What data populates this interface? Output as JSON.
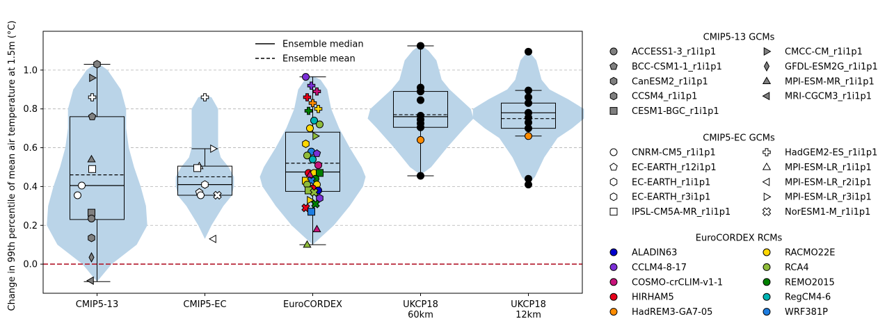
{
  "chart_data": {
    "type": "box-violin",
    "title": "",
    "ylabel": "Change in 99th percentile of mean air temperature at 1.5m (°C)",
    "xlabel": "",
    "ylim": [
      -0.15,
      1.2
    ],
    "yticks": [
      0.0,
      0.2,
      0.4,
      0.6,
      0.8,
      1.0
    ],
    "ytick_labels": [
      "0.0",
      "0.2",
      "0.4",
      "0.6",
      "0.8",
      "1.0"
    ],
    "grid": "horizontal dashed",
    "zero_line_color": "#b2182b",
    "violin_color": "#bad4e8",
    "categories": [
      {
        "label": "CMIP5-13",
        "lines": [
          "CMIP5-13"
        ]
      },
      {
        "label": "CMIP5-EC",
        "lines": [
          "CMIP5-EC"
        ]
      },
      {
        "label": "EuroCORDEX",
        "lines": [
          "EuroCORDEX"
        ]
      },
      {
        "label": "UKCP18 60km",
        "lines": [
          "UKCP18",
          "60km"
        ]
      },
      {
        "label": "UKCP18 12km",
        "lines": [
          "UKCP18",
          "12km"
        ]
      }
    ],
    "groups": [
      {
        "violin": [
          [
            -0.09,
            0.0
          ],
          [
            0.0,
            0.11
          ],
          [
            0.1,
            0.3
          ],
          [
            0.2,
            0.38
          ],
          [
            0.3,
            0.37
          ],
          [
            0.4,
            0.33
          ],
          [
            0.5,
            0.28
          ],
          [
            0.6,
            0.24
          ],
          [
            0.7,
            0.22
          ],
          [
            0.8,
            0.22
          ],
          [
            0.9,
            0.18
          ],
          [
            1.0,
            0.08
          ],
          [
            1.04,
            0.0
          ]
        ],
        "box": {
          "q1": 0.23,
          "median": 0.405,
          "q3": 0.76,
          "mean": 0.46,
          "whisker_low": -0.09,
          "whisker_high": 1.03
        },
        "points": [
          {
            "y": 1.03,
            "marker": "hexagon",
            "color": "#808080"
          },
          {
            "y": 0.96,
            "marker": "tri-right",
            "color": "#808080"
          },
          {
            "y": 0.86,
            "marker": "plus",
            "color": "#ffffff"
          },
          {
            "y": 0.76,
            "marker": "pentagon",
            "color": "#808080"
          },
          {
            "y": 0.54,
            "marker": "tri-up",
            "color": "#808080"
          },
          {
            "y": 0.49,
            "marker": "square",
            "color": "#ffffff"
          },
          {
            "y": 0.405,
            "marker": "circle",
            "color": "#ffffff"
          },
          {
            "y": 0.355,
            "marker": "circle",
            "color": "#ffffff"
          },
          {
            "y": 0.265,
            "marker": "square",
            "color": "#808080"
          },
          {
            "y": 0.235,
            "marker": "circle",
            "color": "#808080"
          },
          {
            "y": 0.135,
            "marker": "hexagon",
            "color": "#808080"
          },
          {
            "y": 0.035,
            "marker": "diamond",
            "color": "#808080"
          },
          {
            "y": -0.085,
            "marker": "tri-left",
            "color": "#808080"
          }
        ]
      },
      {
        "violin": [
          [
            0.13,
            0.0
          ],
          [
            0.2,
            0.05
          ],
          [
            0.3,
            0.14
          ],
          [
            0.35,
            0.2
          ],
          [
            0.4,
            0.22
          ],
          [
            0.45,
            0.22
          ],
          [
            0.5,
            0.18
          ],
          [
            0.55,
            0.12
          ],
          [
            0.6,
            0.1
          ],
          [
            0.7,
            0.1
          ],
          [
            0.8,
            0.1
          ],
          [
            0.86,
            0.05
          ],
          [
            0.87,
            0.0
          ]
        ],
        "box": {
          "q1": 0.355,
          "median": 0.41,
          "q3": 0.505,
          "mean": 0.45,
          "whisker_low": 0.355,
          "whisker_high": 0.595
        },
        "points": [
          {
            "y": 0.86,
            "marker": "plus",
            "color": "#ffffff"
          },
          {
            "y": 0.595,
            "marker": "tri-right",
            "color": "#ffffff"
          },
          {
            "y": 0.505,
            "marker": "tri-up",
            "color": "#ffffff"
          },
          {
            "y": 0.495,
            "marker": "square",
            "color": "#ffffff"
          },
          {
            "y": 0.41,
            "marker": "hexagon",
            "color": "#ffffff"
          },
          {
            "y": 0.37,
            "marker": "pentagon",
            "color": "#ffffff"
          },
          {
            "y": 0.355,
            "marker": "circle",
            "color": "#ffffff"
          },
          {
            "y": 0.355,
            "marker": "cross",
            "color": "#ffffff"
          },
          {
            "y": 0.13,
            "marker": "tri-left",
            "color": "#ffffff"
          }
        ]
      },
      {
        "violin": [
          [
            0.1,
            0.0
          ],
          [
            0.15,
            0.08
          ],
          [
            0.2,
            0.16
          ],
          [
            0.3,
            0.28
          ],
          [
            0.4,
            0.38
          ],
          [
            0.45,
            0.4
          ],
          [
            0.5,
            0.37
          ],
          [
            0.6,
            0.28
          ],
          [
            0.7,
            0.2
          ],
          [
            0.8,
            0.14
          ],
          [
            0.9,
            0.11
          ],
          [
            0.95,
            0.06
          ],
          [
            0.97,
            0.0
          ]
        ],
        "box": {
          "q1": 0.375,
          "median": 0.475,
          "q3": 0.68,
          "mean": 0.52,
          "whisker_low": 0.1,
          "whisker_high": 0.965
        },
        "points": [
          {
            "y": 0.965,
            "marker": "circle",
            "color": "#7b2fd6"
          },
          {
            "y": 0.92,
            "marker": "plus",
            "color": "#7b2fd6"
          },
          {
            "y": 0.89,
            "marker": "plus",
            "color": "#c7137a"
          },
          {
            "y": 0.86,
            "marker": "plus",
            "color": "#e6001a"
          },
          {
            "y": 0.83,
            "marker": "plus",
            "color": "#ff8c00"
          },
          {
            "y": 0.8,
            "marker": "plus",
            "color": "#ffd700"
          },
          {
            "y": 0.79,
            "marker": "plus",
            "color": "#008000"
          },
          {
            "y": 0.74,
            "marker": "circle",
            "color": "#00b3b3"
          },
          {
            "y": 0.72,
            "marker": "circle",
            "color": "#8fbc3a"
          },
          {
            "y": 0.7,
            "marker": "circle",
            "color": "#ffd700"
          },
          {
            "y": 0.66,
            "marker": "tri-right",
            "color": "#8fbc3a"
          },
          {
            "y": 0.62,
            "marker": "hexagon",
            "color": "#ffd700"
          },
          {
            "y": 0.58,
            "marker": "circle",
            "color": "#1e7de0"
          },
          {
            "y": 0.57,
            "marker": "pentagon",
            "color": "#7b2fd6"
          },
          {
            "y": 0.56,
            "marker": "circle",
            "color": "#8fbc3a"
          },
          {
            "y": 0.54,
            "marker": "circle",
            "color": "#00b3b3"
          },
          {
            "y": 0.51,
            "marker": "circle",
            "color": "#c7137a"
          },
          {
            "y": 0.47,
            "marker": "circle",
            "color": "#e6001a"
          },
          {
            "y": 0.47,
            "marker": "circle",
            "color": "#ffd700"
          },
          {
            "y": 0.47,
            "marker": "square",
            "color": "#008000"
          },
          {
            "y": 0.46,
            "marker": "tri-up",
            "color": "#c7137a"
          },
          {
            "y": 0.44,
            "marker": "circle",
            "color": "#008000"
          },
          {
            "y": 0.43,
            "marker": "square",
            "color": "#ffd700"
          },
          {
            "y": 0.43,
            "marker": "cross",
            "color": "#1e7de0"
          },
          {
            "y": 0.41,
            "marker": "circle",
            "color": "#ffd700"
          },
          {
            "y": 0.41,
            "marker": "circle",
            "color": "#8fbc3a"
          },
          {
            "y": 0.39,
            "marker": "circle",
            "color": "#e6001a"
          },
          {
            "y": 0.38,
            "marker": "circle",
            "color": "#0000cd"
          },
          {
            "y": 0.38,
            "marker": "square",
            "color": "#8fbc3a"
          },
          {
            "y": 0.37,
            "marker": "cross",
            "color": "#8fbc3a"
          },
          {
            "y": 0.34,
            "marker": "hexagon",
            "color": "#7b2fd6"
          },
          {
            "y": 0.33,
            "marker": "tri-right",
            "color": "#ffd700"
          },
          {
            "y": 0.31,
            "marker": "cross",
            "color": "#008000"
          },
          {
            "y": 0.29,
            "marker": "cross",
            "color": "#e6001a"
          },
          {
            "y": 0.27,
            "marker": "square",
            "color": "#1e7de0"
          },
          {
            "y": 0.18,
            "marker": "tri-up",
            "color": "#c7137a"
          },
          {
            "y": 0.1,
            "marker": "tri-up",
            "color": "#8fbc3a"
          }
        ]
      },
      {
        "violin": [
          [
            0.46,
            0.0
          ],
          [
            0.5,
            0.08
          ],
          [
            0.6,
            0.2
          ],
          [
            0.7,
            0.33
          ],
          [
            0.75,
            0.4
          ],
          [
            0.8,
            0.38
          ],
          [
            0.85,
            0.3
          ],
          [
            0.9,
            0.22
          ],
          [
            0.95,
            0.16
          ],
          [
            1.0,
            0.14
          ],
          [
            1.05,
            0.12
          ],
          [
            1.1,
            0.06
          ],
          [
            1.13,
            0.0
          ]
        ],
        "box": {
          "q1": 0.705,
          "median": 0.76,
          "q3": 0.89,
          "mean": 0.77,
          "whisker_low": 0.455,
          "whisker_high": 1.125
        },
        "points": [
          {
            "y": 1.125,
            "marker": "circle",
            "color": "#000000"
          },
          {
            "y": 0.91,
            "marker": "circle",
            "color": "#000000"
          },
          {
            "y": 0.89,
            "marker": "circle",
            "color": "#000000"
          },
          {
            "y": 0.845,
            "marker": "circle",
            "color": "#000000"
          },
          {
            "y": 0.765,
            "marker": "circle",
            "color": "#000000"
          },
          {
            "y": 0.745,
            "marker": "circle",
            "color": "#000000"
          },
          {
            "y": 0.725,
            "marker": "circle",
            "color": "#000000"
          },
          {
            "y": 0.705,
            "marker": "circle",
            "color": "#000000"
          },
          {
            "y": 0.64,
            "marker": "circle",
            "color": "#ff8c00"
          },
          {
            "y": 0.455,
            "marker": "circle",
            "color": "#000000"
          }
        ]
      },
      {
        "violin": [
          [
            0.41,
            0.0
          ],
          [
            0.45,
            0.05
          ],
          [
            0.55,
            0.12
          ],
          [
            0.65,
            0.22
          ],
          [
            0.7,
            0.33
          ],
          [
            0.75,
            0.42
          ],
          [
            0.8,
            0.42
          ],
          [
            0.85,
            0.3
          ],
          [
            0.9,
            0.16
          ],
          [
            0.95,
            0.1
          ],
          [
            1.0,
            0.08
          ],
          [
            1.05,
            0.06
          ],
          [
            1.1,
            0.0
          ]
        ],
        "box": {
          "q1": 0.7,
          "median": 0.78,
          "q3": 0.83,
          "mean": 0.75,
          "whisker_low": 0.66,
          "whisker_high": 0.895
        },
        "points": [
          {
            "y": 1.095,
            "marker": "circle",
            "color": "#000000"
          },
          {
            "y": 0.895,
            "marker": "circle",
            "color": "#000000"
          },
          {
            "y": 0.86,
            "marker": "circle",
            "color": "#000000"
          },
          {
            "y": 0.83,
            "marker": "circle",
            "color": "#000000"
          },
          {
            "y": 0.78,
            "marker": "circle",
            "color": "#000000"
          },
          {
            "y": 0.755,
            "marker": "circle",
            "color": "#000000"
          },
          {
            "y": 0.73,
            "marker": "circle",
            "color": "#000000"
          },
          {
            "y": 0.7,
            "marker": "circle",
            "color": "#000000"
          },
          {
            "y": 0.66,
            "marker": "circle",
            "color": "#ff8c00"
          },
          {
            "y": 0.44,
            "marker": "circle",
            "color": "#000000"
          },
          {
            "y": 0.41,
            "marker": "circle",
            "color": "#000000"
          }
        ]
      }
    ],
    "inner_legend": {
      "placement": "top-center",
      "entries": [
        {
          "label": "Ensemble median",
          "style": "solid"
        },
        {
          "label": "Ensemble mean",
          "style": "dashed"
        }
      ]
    },
    "legends": [
      {
        "title": "CMIP5-13 GCMs",
        "entries": [
          {
            "label": "ACCESS1-3_r1i1p1",
            "marker": "circle",
            "color": "#808080"
          },
          {
            "label": "BCC-CSM1-1_r1i1p1",
            "marker": "pentagon",
            "color": "#808080"
          },
          {
            "label": "CanESM2_r1i1p1",
            "marker": "hexagon",
            "color": "#808080"
          },
          {
            "label": "CCSM4_r1i1p1",
            "marker": "hexagon",
            "color": "#808080"
          },
          {
            "label": "CESM1-BGC_r1i1p1",
            "marker": "square",
            "color": "#808080"
          },
          {
            "label": "CMCC-CM_r1i1p1",
            "marker": "tri-right",
            "color": "#808080"
          },
          {
            "label": "GFDL-ESM2G_r1i1p1",
            "marker": "diamond",
            "color": "#808080"
          },
          {
            "label": "MPI-ESM-MR_r1i1p1",
            "marker": "tri-up",
            "color": "#808080"
          },
          {
            "label": "MRI-CGCM3_r1i1p1",
            "marker": "tri-left",
            "color": "#808080"
          }
        ]
      },
      {
        "title": "CMIP5-EC GCMs",
        "entries": [
          {
            "label": "CNRM-CM5_r1i1p1",
            "marker": "circle",
            "color": "#ffffff"
          },
          {
            "label": "EC-EARTH_r12i1p1",
            "marker": "pentagon",
            "color": "#ffffff"
          },
          {
            "label": "EC-EARTH_r1i1p1",
            "marker": "hexagon",
            "color": "#ffffff"
          },
          {
            "label": "EC-EARTH_r3i1p1",
            "marker": "hexagon",
            "color": "#ffffff"
          },
          {
            "label": "IPSL-CM5A-MR_r1i1p1",
            "marker": "square",
            "color": "#ffffff"
          },
          {
            "label": "HadGEM2-ES_r1i1p1",
            "marker": "plus",
            "color": "#ffffff"
          },
          {
            "label": "MPI-ESM-LR_r1i1p1",
            "marker": "tri-up",
            "color": "#ffffff"
          },
          {
            "label": "MPI-ESM-LR_r2i1p1",
            "marker": "tri-left",
            "color": "#ffffff"
          },
          {
            "label": "MPI-ESM-LR_r3i1p1",
            "marker": "tri-right",
            "color": "#ffffff"
          },
          {
            "label": "NorESM1-M_r1i1p1",
            "marker": "cross",
            "color": "#ffffff"
          }
        ]
      },
      {
        "title": "EuroCORDEX RCMs",
        "entries": [
          {
            "label": "ALADIN63",
            "marker": "circle",
            "color": "#0000cd"
          },
          {
            "label": "CCLM4-8-17",
            "marker": "circle",
            "color": "#7b2fd6"
          },
          {
            "label": "COSMO-crCLIM-v1-1",
            "marker": "circle",
            "color": "#c7137a"
          },
          {
            "label": "HIRHAM5",
            "marker": "circle",
            "color": "#e6001a"
          },
          {
            "label": "HadREM3-GA7-05",
            "marker": "circle",
            "color": "#ff8c00"
          },
          {
            "label": "RACMO22E",
            "marker": "circle",
            "color": "#ffd700"
          },
          {
            "label": "RCA4",
            "marker": "circle",
            "color": "#8fbc3a"
          },
          {
            "label": "REMO2015",
            "marker": "circle",
            "color": "#008000"
          },
          {
            "label": "RegCM4-6",
            "marker": "circle",
            "color": "#00b3b3"
          },
          {
            "label": "WRF381P",
            "marker": "circle",
            "color": "#1e7de0"
          }
        ]
      }
    ]
  }
}
